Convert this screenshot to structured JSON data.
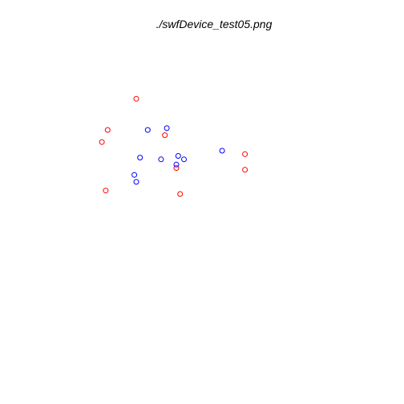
{
  "chart_data": {
    "type": "scatter",
    "title": "./swfDevice_test05.png",
    "xlabel": "",
    "ylabel": "",
    "axes_visible": false,
    "grid": false,
    "legend": "none",
    "series": [
      {
        "color": "#ff0000",
        "marker": "open-circle",
        "points": [
          [
            0.21,
            0.8
          ],
          [
            0.06,
            0.62
          ],
          [
            0.03,
            0.55
          ],
          [
            0.36,
            0.59
          ],
          [
            0.78,
            0.48
          ],
          [
            0.42,
            0.4
          ],
          [
            0.78,
            0.39
          ],
          [
            0.05,
            0.27
          ],
          [
            0.44,
            0.25
          ]
        ]
      },
      {
        "color": "#0000ff",
        "marker": "open-circle",
        "points": [
          [
            0.27,
            0.62
          ],
          [
            0.37,
            0.63
          ],
          [
            0.66,
            0.5
          ],
          [
            0.43,
            0.47
          ],
          [
            0.23,
            0.46
          ],
          [
            0.34,
            0.45
          ],
          [
            0.46,
            0.45
          ],
          [
            0.42,
            0.42
          ],
          [
            0.2,
            0.36
          ],
          [
            0.21,
            0.32
          ]
        ]
      }
    ],
    "xlim": [
      0,
      1
    ],
    "ylim": [
      0,
      1
    ]
  }
}
